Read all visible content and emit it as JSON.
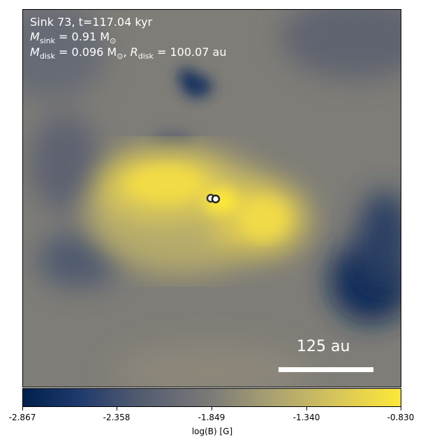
{
  "overlay": {
    "title": "Sink 73, t=117.04 kyr",
    "m_sink_symbol": "M",
    "m_sink_sub": "sink",
    "m_sink_value": "= 0.91 M",
    "m_sink_unit_sub": "⊙",
    "m_disk_symbol": "M",
    "m_disk_sub": "disk",
    "m_disk_value": "= 0.096 M",
    "m_disk_unit_sub": "⊙",
    "r_disk_symbol": "R",
    "r_disk_sub": "disk",
    "r_disk_value": "= 100.07 au"
  },
  "scale_bar": {
    "label": "125 au"
  },
  "colorbar": {
    "ticks": [
      "-2.867",
      "-2.358",
      "-1.849",
      "-1.340",
      "-0.830"
    ],
    "label": "log(B) [G]",
    "colormap": "cividis",
    "colors": [
      "#00204c",
      "#505a6f",
      "#7c7b78",
      "#d4c35c",
      "#fee838"
    ]
  }
}
